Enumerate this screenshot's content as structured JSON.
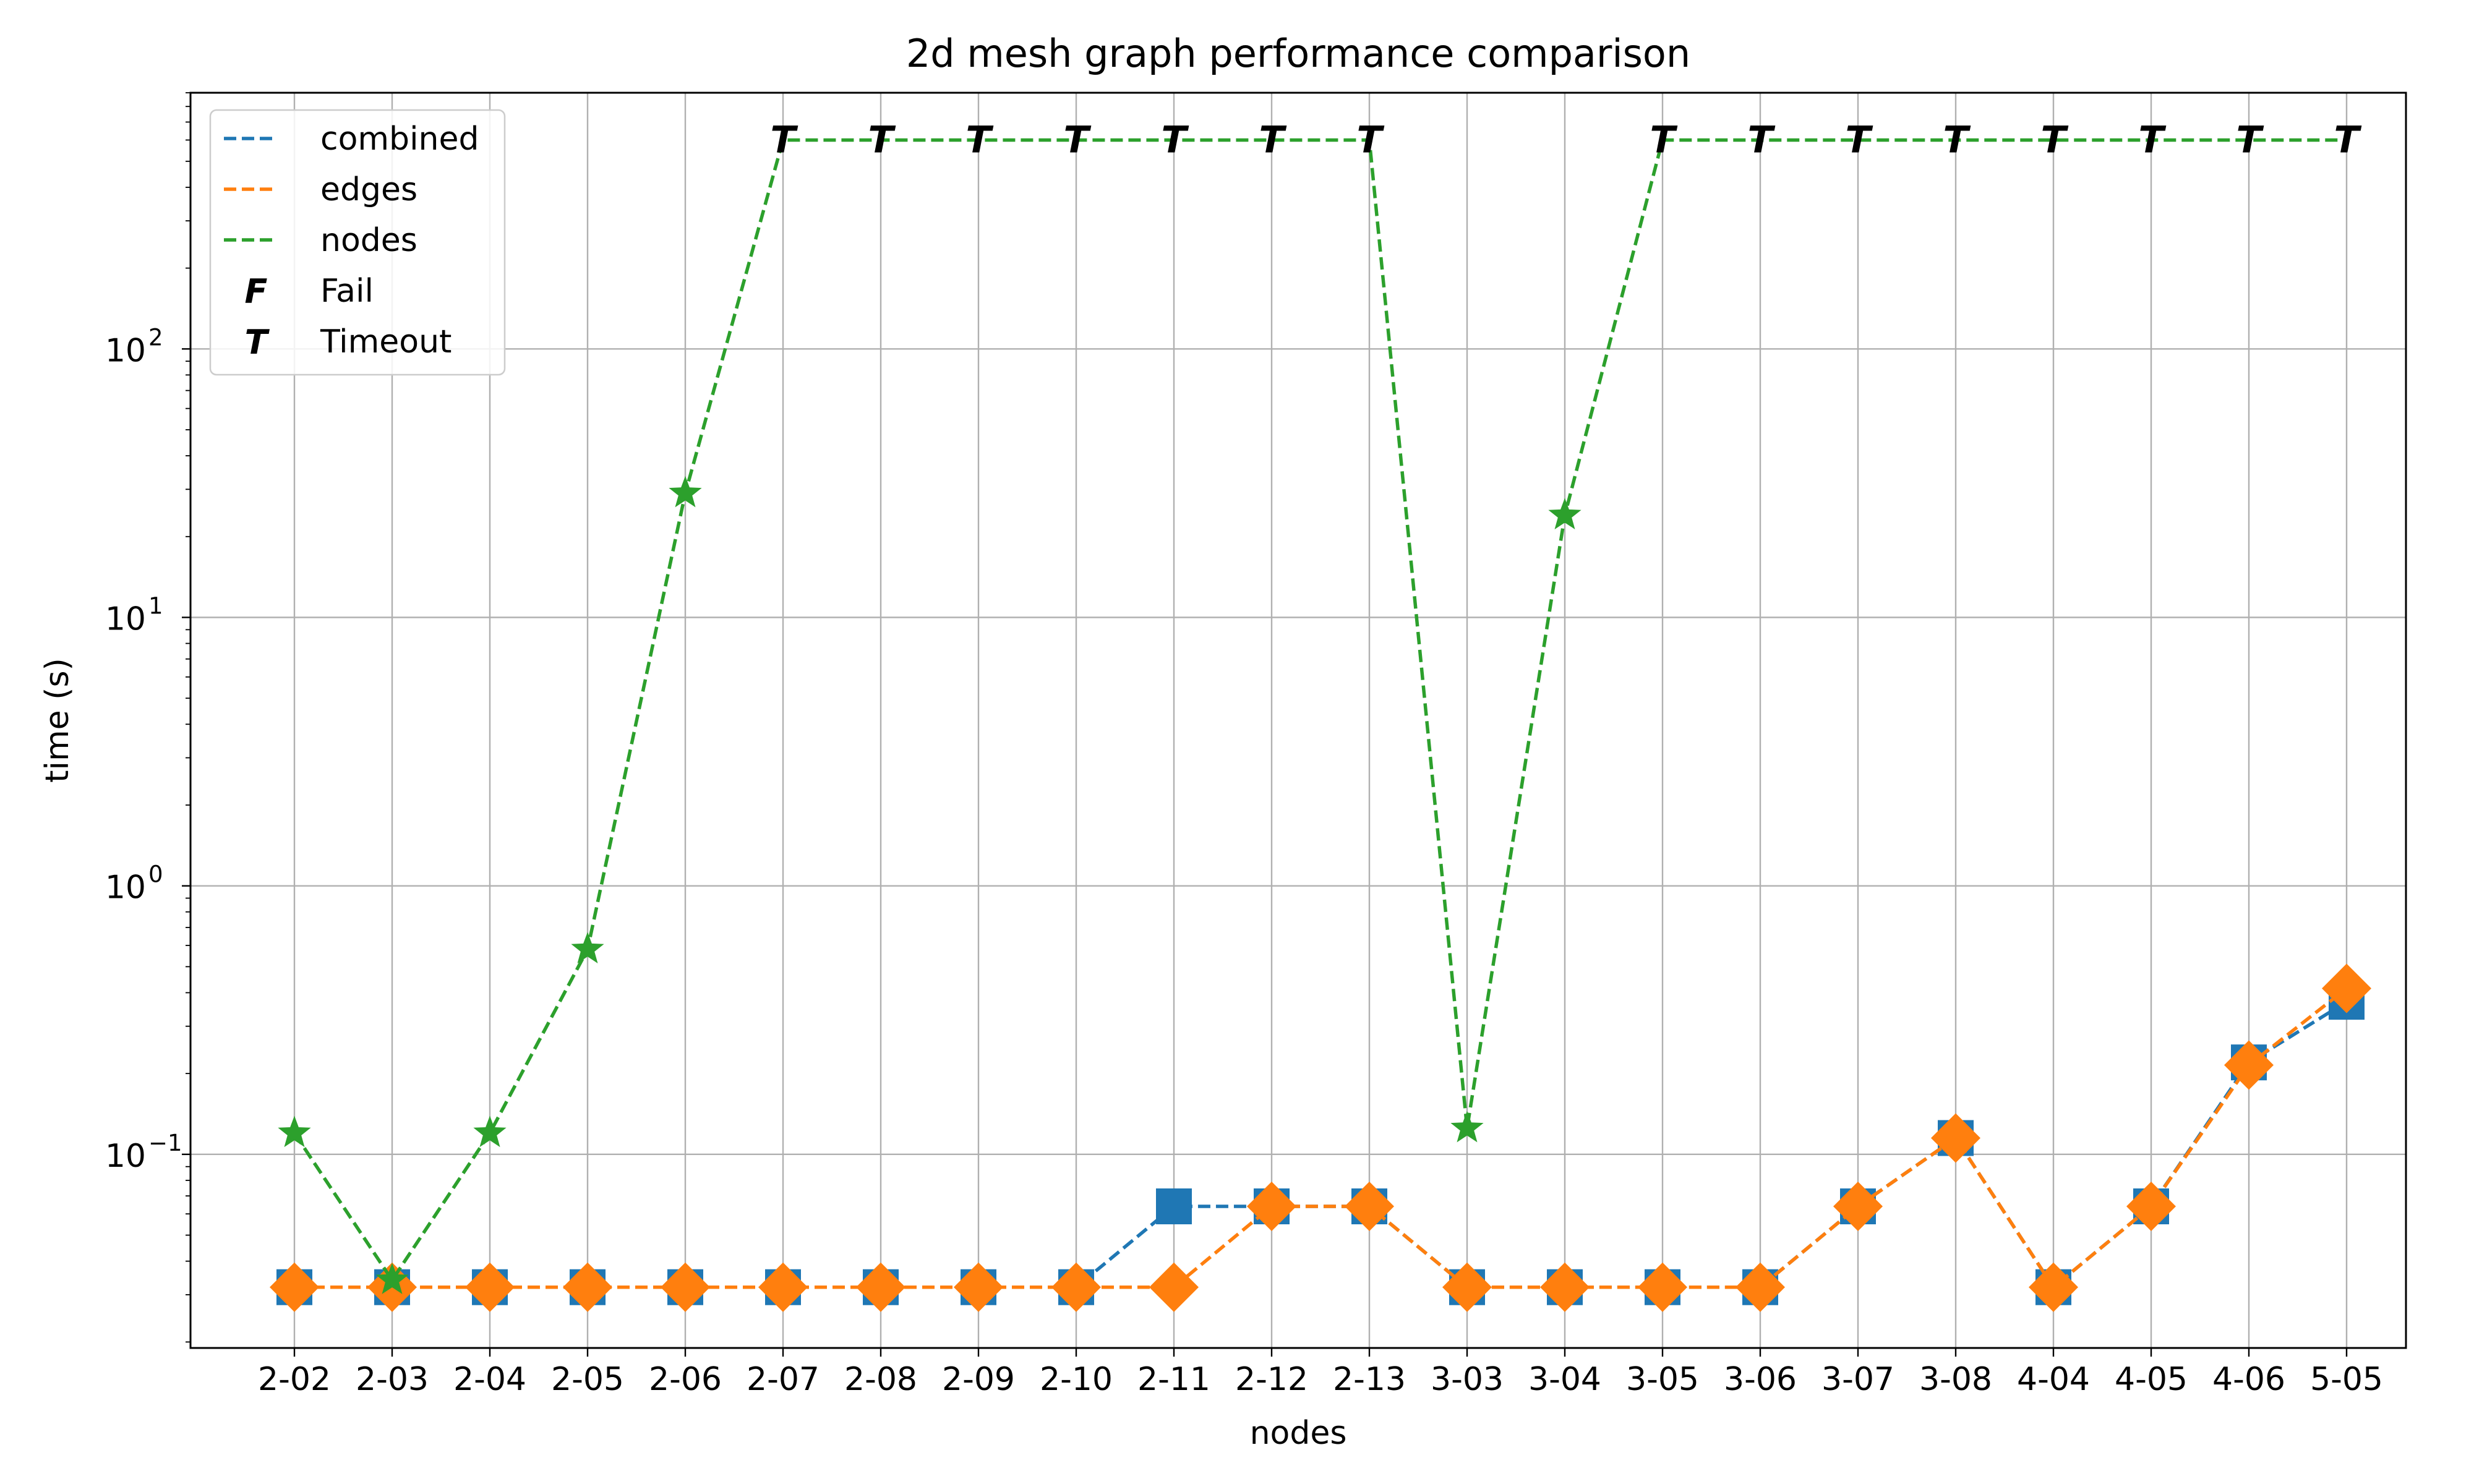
{
  "chart_data": {
    "type": "line",
    "title": "2d mesh graph performance comparison",
    "xlabel": "nodes",
    "ylabel": "time (s)",
    "y_scale": "log",
    "ylim": [
      0.019,
      900
    ],
    "yticks": [
      {
        "value": 0.1,
        "base": "10",
        "exp": "−1"
      },
      {
        "value": 1,
        "base": "10",
        "exp": "0"
      },
      {
        "value": 10,
        "base": "10",
        "exp": "1"
      },
      {
        "value": 100,
        "base": "10",
        "exp": "2"
      }
    ],
    "grid": true,
    "legend_position": "top-left",
    "categories": [
      "2-02",
      "2-03",
      "2-04",
      "2-05",
      "2-06",
      "2-07",
      "2-08",
      "2-09",
      "2-10",
      "2-11",
      "2-12",
      "2-13",
      "3-03",
      "3-04",
      "3-05",
      "3-06",
      "3-07",
      "3-08",
      "4-04",
      "4-05",
      "4-06",
      "5-05"
    ],
    "series": [
      {
        "name": "combined",
        "color": "#1f77b4",
        "marker": "square",
        "values": [
          0.032,
          0.032,
          0.032,
          0.032,
          0.032,
          0.032,
          0.032,
          0.032,
          0.032,
          0.064,
          0.064,
          0.064,
          0.032,
          0.032,
          0.032,
          0.032,
          0.064,
          0.115,
          0.032,
          0.064,
          0.22,
          0.37
        ],
        "status": [
          "",
          "",
          "",
          "",
          "",
          "",
          "",
          "",
          "",
          "",
          "",
          "",
          "",
          "",
          "",
          "",
          "",
          "",
          "",
          "",
          "",
          ""
        ]
      },
      {
        "name": "edges",
        "color": "#ff7f0e",
        "marker": "diamond",
        "values": [
          0.032,
          0.032,
          0.032,
          0.032,
          0.032,
          0.032,
          0.032,
          0.032,
          0.032,
          0.032,
          0.064,
          0.064,
          0.032,
          0.032,
          0.032,
          0.032,
          0.064,
          0.115,
          0.032,
          0.064,
          0.215,
          0.415
        ],
        "status": [
          "",
          "",
          "",
          "",
          "",
          "",
          "",
          "",
          "",
          "",
          "",
          "",
          "",
          "",
          "",
          "",
          "",
          "",
          "",
          "",
          "",
          ""
        ]
      },
      {
        "name": "nodes",
        "color": "#2ca02c",
        "marker": "star",
        "values": [
          0.12,
          0.034,
          0.12,
          0.58,
          29,
          600,
          600,
          600,
          600,
          600,
          600,
          600,
          0.125,
          24,
          600,
          600,
          600,
          600,
          600,
          600,
          600,
          600
        ],
        "status": [
          "",
          "",
          "",
          "",
          "",
          "T",
          "T",
          "T",
          "T",
          "T",
          "T",
          "T",
          "",
          "",
          "T",
          "T",
          "T",
          "T",
          "T",
          "T",
          "T",
          "T"
        ]
      }
    ],
    "legend_markers": [
      {
        "symbol": "F",
        "label": "Fail"
      },
      {
        "symbol": "T",
        "label": "Timeout"
      }
    ]
  }
}
